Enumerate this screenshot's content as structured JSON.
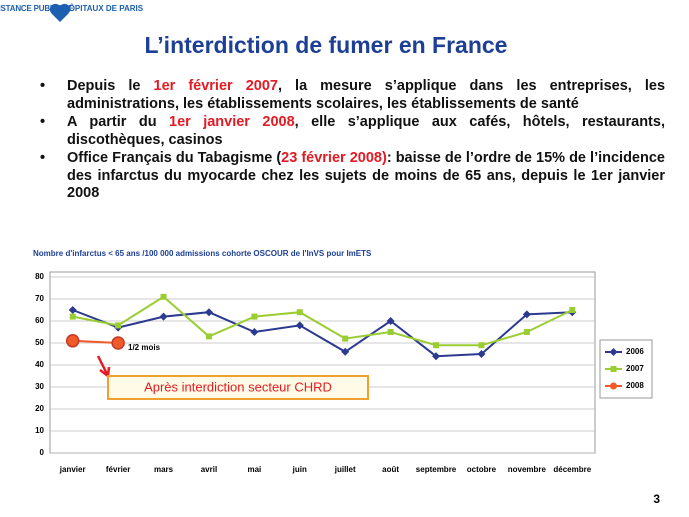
{
  "header": {
    "logo_left": "ASSISTANCE PUBLIQUE",
    "logo_right": "HÔPITAUX DE PARIS"
  },
  "title": "L’interdiction de fumer en France",
  "bullets": [
    [
      {
        "text": "Depuis le "
      },
      {
        "text": "1er février 2007",
        "color": "#e31b23"
      },
      {
        "text": ", la mesure s’applique dans les entreprises, les administrations, les établissements scolaires, les établissements de santé"
      }
    ],
    [
      {
        "text": "A partir du "
      },
      {
        "text": "1er janvier 2008",
        "color": "#e31b23"
      },
      {
        "text": ", elle s’applique aux cafés, hôtels, restaurants, discothèques, casinos"
      }
    ],
    [
      {
        "text": "Office Français du Tabagisme ("
      },
      {
        "text": "23 février 2008)",
        "color": "#e31b23"
      },
      {
        "text": ": baisse de l’ordre de 15% de l’incidence des infarctus du myocarde chez les sujets de moins de 65 ans, depuis le 1er janvier 2008"
      }
    ]
  ],
  "chart_data": {
    "type": "line",
    "title": "Nombre d'infarctus < 65 ans /100 000 admissions cohorte OSCOUR de l'InVS pour ImETS",
    "categories": [
      "janvier",
      "février",
      "mars",
      "avril",
      "mai",
      "juin",
      "juillet",
      "août",
      "septembre",
      "octobre",
      "novembre",
      "décembre"
    ],
    "series": [
      {
        "name": "2006",
        "color": "#2b3a8f",
        "marker": "diamond",
        "values": [
          65,
          57,
          62,
          64,
          55,
          58,
          46,
          60,
          44,
          45,
          63,
          64
        ]
      },
      {
        "name": "2007",
        "color": "#9acd32",
        "marker": "square",
        "values": [
          62,
          58,
          71,
          53,
          62,
          64,
          52,
          55,
          49,
          49,
          55,
          65
        ]
      },
      {
        "name": "2008",
        "color": "#f05a28",
        "marker": "circle",
        "values": [
          51,
          50,
          null,
          null,
          null,
          null,
          null,
          null,
          null,
          null,
          null,
          null
        ]
      }
    ],
    "ylim": [
      0,
      80
    ],
    "yticks": [
      0,
      10,
      20,
      30,
      40,
      50,
      60,
      70,
      80
    ],
    "grid": true,
    "legend": "right",
    "annotations": [
      "1/2 mois",
      "Après interdiction secteur CHRD"
    ]
  },
  "page_number": "3"
}
